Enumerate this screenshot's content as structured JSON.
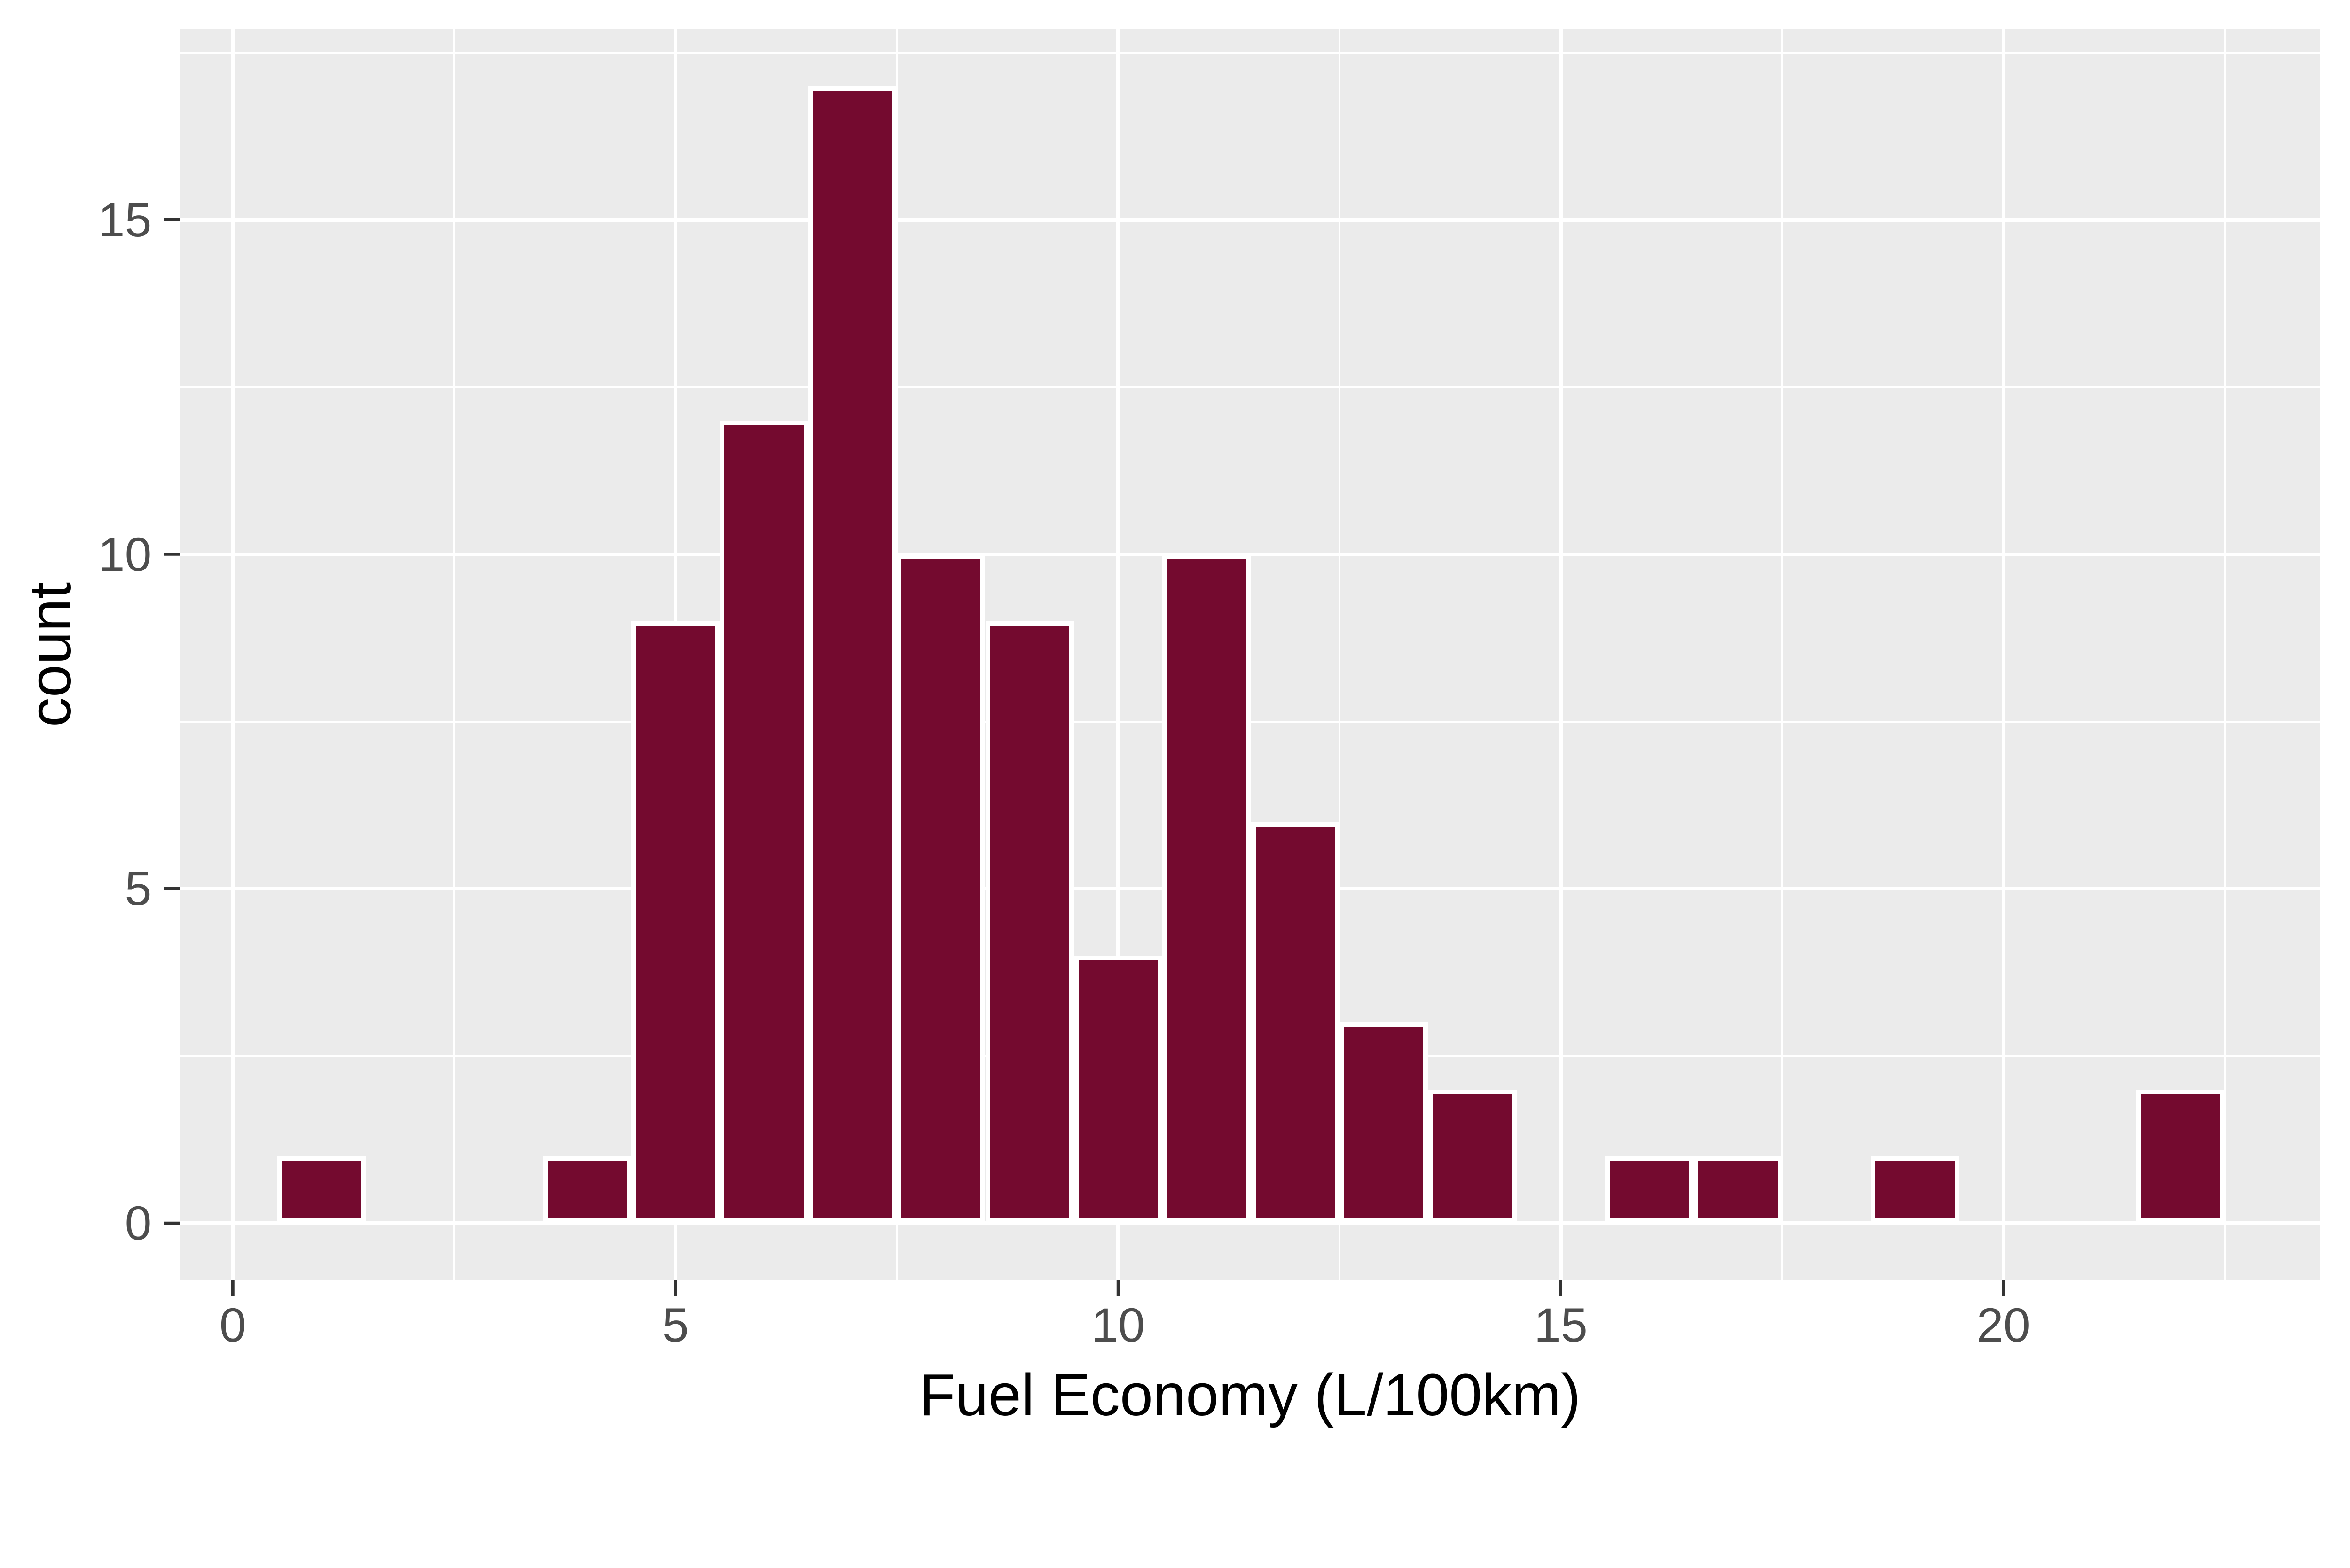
{
  "figure": {
    "kind": "ggplot-histogram",
    "background": "#FFFFFF"
  },
  "chart_data": {
    "type": "bar",
    "subtype": "histogram",
    "title": "",
    "xlabel": "Fuel Economy (L/100km)",
    "ylabel": "count",
    "binwidth": 1,
    "bins": [
      {
        "center": 1,
        "count": 1
      },
      {
        "center": 4,
        "count": 1
      },
      {
        "center": 5,
        "count": 9
      },
      {
        "center": 6,
        "count": 12
      },
      {
        "center": 7,
        "count": 17
      },
      {
        "center": 8,
        "count": 10
      },
      {
        "center": 9,
        "count": 9
      },
      {
        "center": 10,
        "count": 4
      },
      {
        "center": 11,
        "count": 10
      },
      {
        "center": 12,
        "count": 6
      },
      {
        "center": 13,
        "count": 3
      },
      {
        "center": 14,
        "count": 2
      },
      {
        "center": 16,
        "count": 1
      },
      {
        "center": 17,
        "count": 1
      },
      {
        "center": 19,
        "count": 1
      },
      {
        "center": 22,
        "count": 2
      }
    ],
    "x_ticks": [
      0,
      5,
      10,
      15,
      20
    ],
    "y_ticks": [
      0,
      5,
      10,
      15
    ],
    "x_minor_ticks": [
      2.5,
      7.5,
      12.5,
      17.5,
      22.5
    ],
    "y_minor_ticks": [
      2.5,
      7.5,
      12.5,
      17.5
    ],
    "x_domain": [
      -0.6,
      23.58
    ],
    "y_domain": [
      -0.85,
      17.85
    ],
    "grid": true,
    "legend_position": "none",
    "theme": {
      "panel_bg": "#EBEBEB",
      "grid_color": "#FFFFFF",
      "bar_fill": "#740A2F",
      "bar_stroke": "#FFFFFF",
      "tick_color": "#333333",
      "tick_label_color": "#4D4D4D",
      "axis_title_color": "#000000"
    }
  }
}
